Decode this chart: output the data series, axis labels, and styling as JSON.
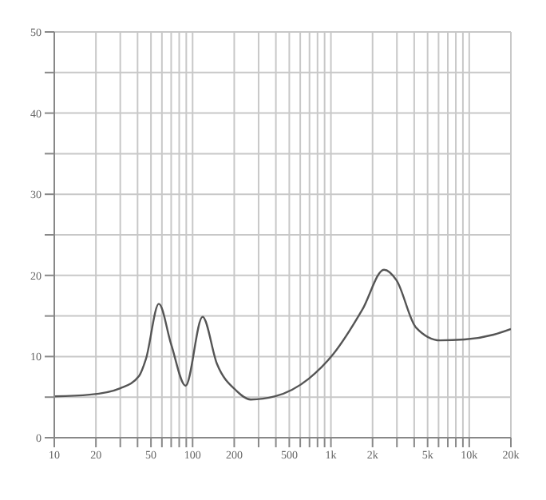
{
  "chart_data": {
    "type": "line",
    "log": "x",
    "grid": true,
    "marker": "none",
    "line_style": "solid",
    "xlim": [
      10,
      20000
    ],
    "xticks": [
      10,
      20,
      {
        "value": 30,
        "label": null
      },
      {
        "value": 40,
        "label": null
      },
      50,
      {
        "value": 60,
        "label": null
      },
      {
        "value": 70,
        "label": null
      },
      {
        "value": 80,
        "label": null
      },
      {
        "value": 90,
        "label": null
      },
      100,
      200,
      {
        "value": 300,
        "label": null
      },
      {
        "value": 400,
        "label": null
      },
      500,
      {
        "value": 600,
        "label": null
      },
      {
        "value": 700,
        "label": null
      },
      {
        "value": 800,
        "label": null
      },
      {
        "value": 900,
        "label": null
      },
      {
        "value": 1000,
        "label": "1k"
      },
      {
        "value": 2000,
        "label": "2k"
      },
      {
        "value": 3000,
        "label": null
      },
      {
        "value": 4000,
        "label": null
      },
      {
        "value": 5000,
        "label": "5k"
      },
      {
        "value": 6000,
        "label": null
      },
      {
        "value": 7000,
        "label": null
      },
      {
        "value": 8000,
        "label": null
      },
      {
        "value": 9000,
        "label": null
      },
      {
        "value": 10000,
        "label": "10k"
      },
      {
        "value": 20000,
        "label": "20k"
      }
    ],
    "ylim": [
      0,
      50
    ],
    "yticks": [
      0,
      {
        "value": 5,
        "label": null
      },
      10,
      {
        "value": 15,
        "label": null
      },
      20,
      {
        "value": 25,
        "label": null
      },
      30,
      {
        "value": 35,
        "label": null
      },
      40,
      {
        "value": 45,
        "label": null
      },
      50
    ],
    "series": [
      {
        "color": "#555555",
        "x": [
          10,
          18,
          30,
          41,
          46,
          57,
          70,
          89,
          118,
          150,
          207,
          263,
          395,
          695,
          1040,
          1690,
          2420,
          2980,
          4110,
          6160,
          9250,
          15000,
          20000
        ],
        "values": [
          5.1,
          5.3,
          6.1,
          7.6,
          9.7,
          16.5,
          11.5,
          6.4,
          14.9,
          9.1,
          5.8,
          4.7,
          5.1,
          7.3,
          10.3,
          15.8,
          20.7,
          19.4,
          13.6,
          12.0,
          12.1,
          12.7,
          13.4
        ]
      }
    ]
  }
}
